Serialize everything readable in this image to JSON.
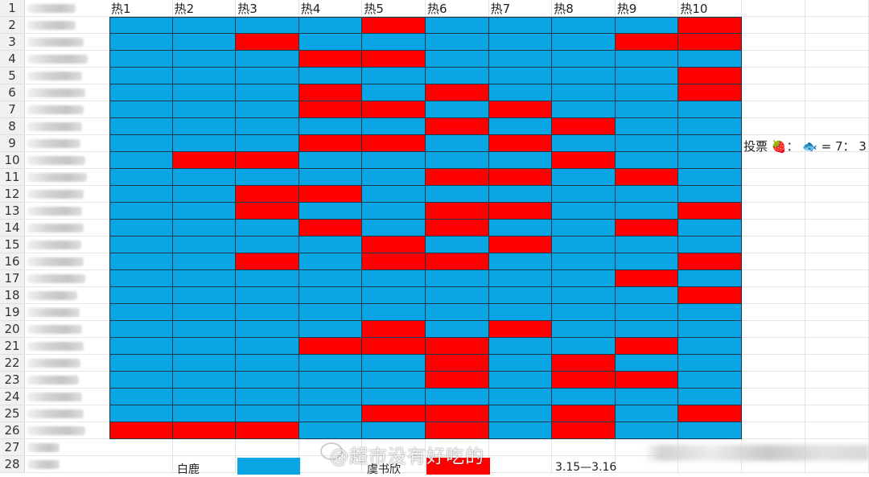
{
  "spreadsheet": {
    "headers": [
      "热1",
      "热2",
      "热3",
      "热4",
      "热5",
      "热6",
      "热7",
      "热8",
      "热9",
      "热10"
    ],
    "row_numbers": [
      1,
      2,
      3,
      4,
      5,
      6,
      7,
      8,
      9,
      10,
      11,
      12,
      13,
      14,
      15,
      16,
      17,
      18,
      19,
      20,
      21,
      22,
      23,
      24,
      25,
      26,
      27,
      28
    ],
    "colors": {
      "blue": "#0aa5e4",
      "red": "#ff0000",
      "grid_line": "#1a3a4a"
    },
    "legend_key": {
      "B": "白鹿 (blue)",
      "R": "虞书欣 (red)"
    },
    "grid": [
      [
        "B",
        "B",
        "B",
        "B",
        "R",
        "B",
        "B",
        "B",
        "B",
        "R"
      ],
      [
        "B",
        "B",
        "R",
        "B",
        "B",
        "B",
        "B",
        "B",
        "R",
        "R"
      ],
      [
        "B",
        "B",
        "B",
        "R",
        "R",
        "B",
        "B",
        "B",
        "B",
        "B"
      ],
      [
        "B",
        "B",
        "B",
        "B",
        "B",
        "B",
        "B",
        "B",
        "B",
        "R"
      ],
      [
        "B",
        "B",
        "B",
        "R",
        "B",
        "R",
        "B",
        "B",
        "B",
        "R"
      ],
      [
        "B",
        "B",
        "B",
        "R",
        "R",
        "B",
        "R",
        "B",
        "B",
        "B"
      ],
      [
        "B",
        "B",
        "B",
        "B",
        "B",
        "R",
        "B",
        "R",
        "B",
        "B"
      ],
      [
        "B",
        "B",
        "B",
        "R",
        "R",
        "B",
        "R",
        "B",
        "B",
        "B"
      ],
      [
        "B",
        "R",
        "R",
        "B",
        "B",
        "B",
        "B",
        "R",
        "B",
        "B"
      ],
      [
        "B",
        "B",
        "B",
        "B",
        "B",
        "R",
        "R",
        "B",
        "R",
        "B"
      ],
      [
        "B",
        "B",
        "R",
        "R",
        "B",
        "B",
        "B",
        "B",
        "B",
        "B"
      ],
      [
        "B",
        "B",
        "R",
        "B",
        "B",
        "R",
        "R",
        "B",
        "B",
        "R"
      ],
      [
        "B",
        "B",
        "B",
        "R",
        "B",
        "R",
        "B",
        "B",
        "R",
        "B"
      ],
      [
        "B",
        "B",
        "B",
        "B",
        "R",
        "B",
        "R",
        "B",
        "B",
        "B"
      ],
      [
        "B",
        "B",
        "R",
        "B",
        "R",
        "R",
        "B",
        "B",
        "B",
        "R"
      ],
      [
        "B",
        "B",
        "B",
        "B",
        "B",
        "B",
        "B",
        "B",
        "R",
        "B"
      ],
      [
        "B",
        "B",
        "B",
        "B",
        "B",
        "B",
        "B",
        "B",
        "B",
        "R"
      ],
      [
        "B",
        "B",
        "B",
        "B",
        "B",
        "B",
        "B",
        "B",
        "B",
        "B"
      ],
      [
        "B",
        "B",
        "B",
        "B",
        "R",
        "B",
        "R",
        "B",
        "B",
        "B"
      ],
      [
        "B",
        "B",
        "B",
        "R",
        "R",
        "R",
        "B",
        "B",
        "R",
        "B"
      ],
      [
        "B",
        "B",
        "B",
        "B",
        "B",
        "R",
        "B",
        "R",
        "B",
        "B"
      ],
      [
        "B",
        "B",
        "B",
        "B",
        "B",
        "R",
        "B",
        "R",
        "R",
        "B"
      ],
      [
        "B",
        "B",
        "B",
        "B",
        "B",
        "B",
        "B",
        "B",
        "B",
        "B"
      ],
      [
        "B",
        "B",
        "B",
        "B",
        "R",
        "R",
        "B",
        "R",
        "B",
        "R"
      ],
      [
        "R",
        "R",
        "R",
        "B",
        "B",
        "R",
        "B",
        "R",
        "B",
        "B"
      ]
    ]
  },
  "side_note": {
    "text": "投票 🍓： 🐟 = 7： 3",
    "icons": [
      "strawberry-icon",
      "fish-icon"
    ]
  },
  "legend": {
    "items": [
      {
        "label": "白鹿",
        "color": "#0aa5e4"
      },
      {
        "label": "虞书欣",
        "color": "#ff0000"
      }
    ],
    "date_range": "3.15—3.16"
  },
  "watermark": {
    "text": "@超市没有好吃的",
    "icon": "weibo-icon"
  }
}
